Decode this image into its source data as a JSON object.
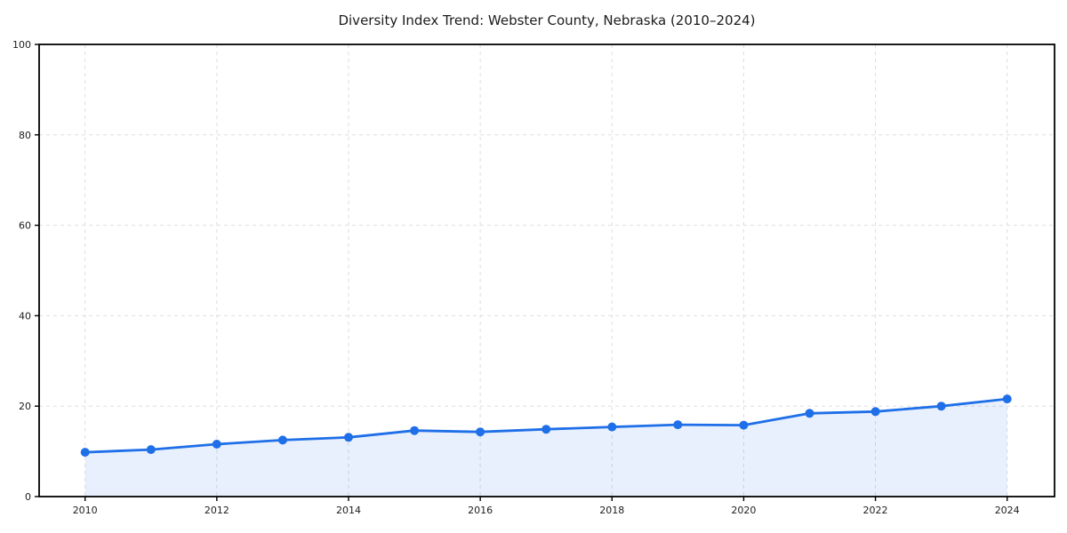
{
  "figure": {
    "background_color": "#ffffff"
  },
  "chart_data": {
    "type": "line",
    "title": "Diversity Index Trend: Webster County, Nebraska (2010–2024)",
    "x": [
      2010,
      2011,
      2012,
      2013,
      2014,
      2015,
      2016,
      2017,
      2018,
      2019,
      2020,
      2021,
      2022,
      2023,
      2024
    ],
    "values": [
      9.8,
      10.4,
      11.6,
      12.5,
      13.1,
      14.6,
      14.3,
      14.9,
      15.4,
      15.9,
      15.8,
      18.4,
      18.8,
      20.0,
      21.6
    ],
    "xticks": [
      2010,
      2012,
      2014,
      2016,
      2018,
      2020,
      2022,
      2024
    ],
    "yticks": [
      0,
      20,
      40,
      60,
      80,
      100
    ],
    "ylim": [
      0,
      100
    ],
    "xlabel": "",
    "ylabel": "",
    "legend": "none",
    "grid": "dashed",
    "marker": "circle",
    "line_color": "#1f6fe8",
    "marker_color": "#1f6fe8",
    "fill_color": "rgba(31,111,232,0.10)",
    "grid_color": "#dedede",
    "spine_color": "#000000",
    "text_color": "#1c1c1c"
  }
}
